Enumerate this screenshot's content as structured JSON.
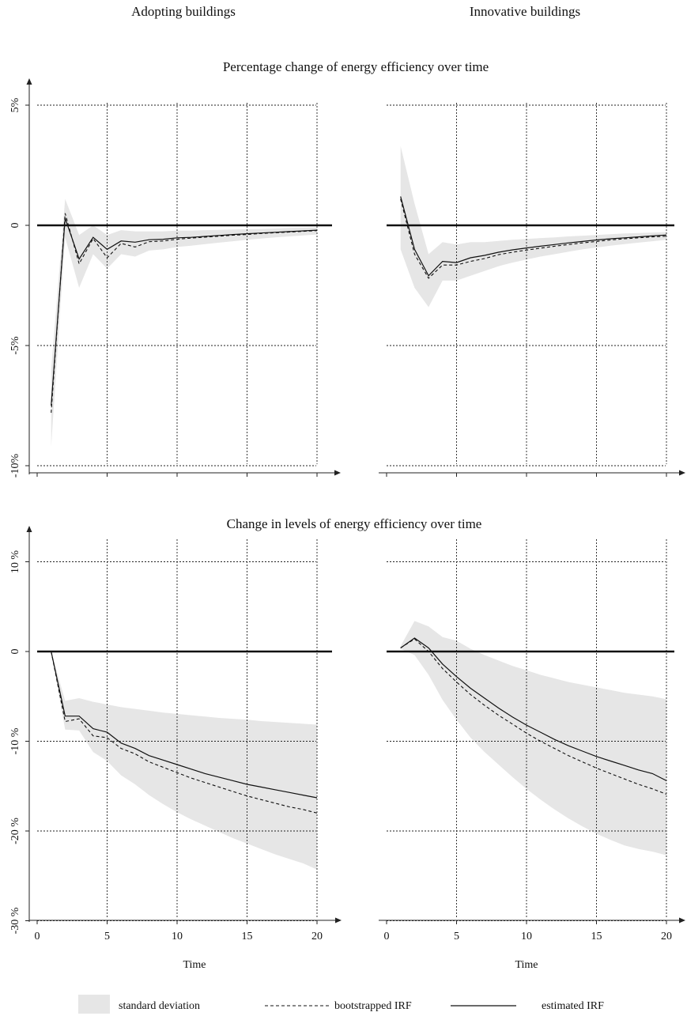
{
  "column_titles": [
    "Adopting buildings",
    "Innovative buildings"
  ],
  "xlabel": "Time",
  "legend": {
    "band_label": "standard deviation",
    "bootstrapped_label": "bootstrapped IRF",
    "estimated_label": "estimated IRF"
  },
  "colors": {
    "band": "#e6e6e6",
    "lines": "#111111",
    "zero_line": "#111111"
  },
  "chart_data": [
    {
      "type": "line",
      "panel": "top-left",
      "title": "Percentage change of energy efficiency over time",
      "xlim": [
        0,
        21
      ],
      "ylim": [
        -10.2,
        6
      ],
      "xticks": [
        0,
        5,
        10,
        15,
        20
      ],
      "show_x_tick_labels": false,
      "yticks": [
        5,
        0,
        -5,
        -10
      ],
      "ytick_labels": [
        "5%",
        "0",
        "-5%",
        "-10%"
      ],
      "grid": true,
      "x": [
        1,
        2,
        3,
        4,
        5,
        6,
        7,
        8,
        9,
        10,
        11,
        12,
        13,
        14,
        15,
        16,
        17,
        18,
        19,
        20
      ],
      "series": [
        {
          "values": [
            -7.5,
            0.3,
            -1.4,
            -0.5,
            -1.0,
            -0.65,
            -0.7,
            -0.6,
            -0.58,
            -0.52,
            -0.5,
            -0.46,
            -0.42,
            -0.38,
            -0.35,
            -0.32,
            -0.29,
            -0.26,
            -0.23,
            -0.2
          ]
        },
        {
          "values": [
            -7.8,
            0.5,
            -1.6,
            -0.55,
            -1.35,
            -0.75,
            -0.9,
            -0.68,
            -0.65,
            -0.58,
            -0.53,
            -0.49,
            -0.45,
            -0.41,
            -0.38,
            -0.34,
            -0.31,
            -0.28,
            -0.25,
            -0.22
          ]
        }
      ],
      "band": {
        "upper": [
          -6.0,
          1.1,
          -0.4,
          0.0,
          -0.4,
          -0.2,
          -0.25,
          -0.25,
          -0.25,
          -0.22,
          -0.22,
          -0.2,
          -0.19,
          -0.17,
          -0.16,
          -0.15,
          -0.13,
          -0.11,
          -0.1,
          -0.09
        ],
        "lower": [
          -9.2,
          -0.5,
          -2.6,
          -1.2,
          -1.8,
          -1.2,
          -1.3,
          -1.05,
          -1.0,
          -0.9,
          -0.85,
          -0.78,
          -0.72,
          -0.66,
          -0.6,
          -0.55,
          -0.5,
          -0.46,
          -0.42,
          -0.38
        ]
      }
    },
    {
      "type": "line",
      "panel": "top-right",
      "title": "",
      "xlim": [
        0,
        21
      ],
      "ylim": [
        -10.2,
        6
      ],
      "xticks": [
        0,
        5,
        10,
        15,
        20
      ],
      "show_x_tick_labels": false,
      "yticks": [
        5,
        0,
        -5,
        -10
      ],
      "ytick_labels": [],
      "grid": true,
      "x": [
        1,
        2,
        3,
        4,
        5,
        6,
        7,
        8,
        9,
        10,
        11,
        12,
        13,
        14,
        15,
        16,
        17,
        18,
        19,
        20
      ],
      "series": [
        {
          "values": [
            1.2,
            -1.0,
            -2.1,
            -1.5,
            -1.55,
            -1.35,
            -1.25,
            -1.12,
            -1.02,
            -0.94,
            -0.87,
            -0.8,
            -0.73,
            -0.67,
            -0.61,
            -0.56,
            -0.52,
            -0.48,
            -0.44,
            -0.4
          ]
        },
        {
          "values": [
            1.1,
            -1.2,
            -2.2,
            -1.65,
            -1.65,
            -1.5,
            -1.38,
            -1.22,
            -1.12,
            -1.03,
            -0.95,
            -0.87,
            -0.8,
            -0.73,
            -0.67,
            -0.61,
            -0.56,
            -0.52,
            -0.48,
            -0.45
          ]
        }
      ],
      "band": {
        "upper": [
          3.3,
          0.9,
          -1.2,
          -0.7,
          -0.8,
          -0.7,
          -0.7,
          -0.65,
          -0.6,
          -0.57,
          -0.53,
          -0.5,
          -0.46,
          -0.43,
          -0.4,
          -0.37,
          -0.34,
          -0.32,
          -0.3,
          -0.28
        ],
        "lower": [
          -1.0,
          -2.6,
          -3.4,
          -2.3,
          -2.3,
          -2.1,
          -1.9,
          -1.7,
          -1.55,
          -1.42,
          -1.3,
          -1.2,
          -1.1,
          -1.0,
          -0.92,
          -0.85,
          -0.78,
          -0.72,
          -0.66,
          -0.6
        ]
      }
    },
    {
      "type": "line",
      "panel": "bottom-left",
      "title": "Change in levels of energy efficiency over time",
      "xlim": [
        0,
        21
      ],
      "ylim": [
        -31,
        13
      ],
      "xticks": [
        0,
        5,
        10,
        15,
        20
      ],
      "show_x_tick_labels": true,
      "yticks": [
        10,
        0,
        -10,
        -20,
        -30
      ],
      "ytick_labels": [
        "10 %",
        "0",
        "-10 %",
        "-20 %",
        "-30 %"
      ],
      "grid": true,
      "x": [
        1,
        2,
        3,
        4,
        5,
        6,
        7,
        8,
        9,
        10,
        11,
        12,
        13,
        14,
        15,
        16,
        17,
        18,
        19,
        20
      ],
      "series": [
        {
          "values": [
            0,
            -7.2,
            -7.2,
            -8.6,
            -9.0,
            -10.2,
            -10.8,
            -11.6,
            -12.1,
            -12.6,
            -13.1,
            -13.6,
            -14.0,
            -14.4,
            -14.8,
            -15.1,
            -15.4,
            -15.7,
            -16.0,
            -16.3
          ]
        },
        {
          "values": [
            0,
            -7.8,
            -7.5,
            -9.4,
            -9.6,
            -10.8,
            -11.4,
            -12.3,
            -12.9,
            -13.5,
            -14.1,
            -14.6,
            -15.1,
            -15.6,
            -16.1,
            -16.5,
            -16.9,
            -17.3,
            -17.6,
            -18.0
          ]
        }
      ],
      "band": {
        "upper": [
          0,
          -5.5,
          -5.2,
          -5.6,
          -5.9,
          -6.2,
          -6.4,
          -6.6,
          -6.8,
          -6.95,
          -7.1,
          -7.25,
          -7.4,
          -7.5,
          -7.6,
          -7.75,
          -7.85,
          -7.95,
          -8.05,
          -8.15
        ],
        "lower": [
          0,
          -8.7,
          -8.8,
          -11.2,
          -12.2,
          -13.8,
          -14.8,
          -16.0,
          -17.0,
          -17.9,
          -18.7,
          -19.4,
          -20.1,
          -20.8,
          -21.4,
          -22.0,
          -22.6,
          -23.1,
          -23.6,
          -24.3
        ]
      }
    },
    {
      "type": "line",
      "panel": "bottom-right",
      "title": "",
      "xlim": [
        0,
        21
      ],
      "ylim": [
        -31,
        13
      ],
      "xticks": [
        0,
        5,
        10,
        15,
        20
      ],
      "show_x_tick_labels": true,
      "yticks": [
        10,
        0,
        -10,
        -20,
        -30
      ],
      "ytick_labels": [],
      "grid": true,
      "x": [
        1,
        2,
        3,
        4,
        5,
        6,
        7,
        8,
        9,
        10,
        11,
        12,
        13,
        14,
        15,
        16,
        17,
        18,
        19,
        20
      ],
      "series": [
        {
          "values": [
            0.4,
            1.5,
            0.4,
            -1.4,
            -2.8,
            -4.1,
            -5.2,
            -6.3,
            -7.3,
            -8.2,
            -9.0,
            -9.8,
            -10.5,
            -11.1,
            -11.7,
            -12.2,
            -12.7,
            -13.2,
            -13.6,
            -14.4
          ]
        },
        {
          "values": [
            0.4,
            1.4,
            0.0,
            -1.9,
            -3.4,
            -4.8,
            -6.0,
            -7.1,
            -8.1,
            -9.1,
            -10.0,
            -10.8,
            -11.6,
            -12.3,
            -13.0,
            -13.6,
            -14.2,
            -14.8,
            -15.3,
            -15.9
          ]
        }
      ],
      "band": {
        "upper": [
          0.6,
          3.4,
          2.8,
          1.6,
          1.2,
          0.3,
          -0.4,
          -1.0,
          -1.6,
          -2.1,
          -2.6,
          -3.0,
          -3.4,
          -3.7,
          -4.0,
          -4.3,
          -4.6,
          -4.8,
          -5.0,
          -5.3
        ],
        "lower": [
          0.3,
          -0.4,
          -2.6,
          -5.4,
          -7.6,
          -9.6,
          -11.2,
          -12.6,
          -14.0,
          -15.3,
          -16.5,
          -17.6,
          -18.6,
          -19.5,
          -20.3,
          -21.0,
          -21.6,
          -22.0,
          -22.3,
          -22.7
        ]
      }
    }
  ]
}
